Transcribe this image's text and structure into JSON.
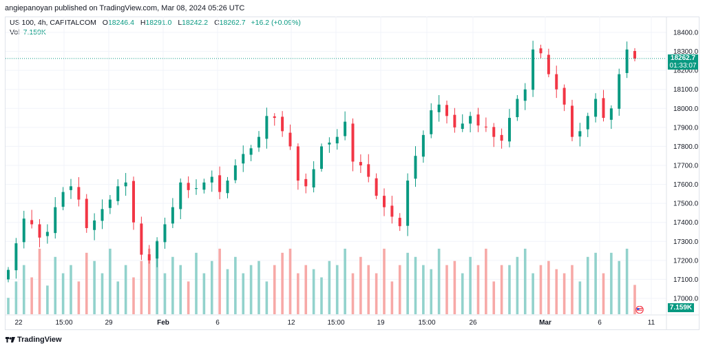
{
  "header": {
    "publish_line": "angiepanoyan published on TradingView.com, Mar 08, 2024 05:26 UTC"
  },
  "legend": {
    "symbol": "US 100, 4h, CAPITALCOM",
    "open_label": "O",
    "open": "18246.4",
    "high_label": "H",
    "high": "18291.0",
    "low_label": "L",
    "low": "18242.2",
    "close_label": "C",
    "close": "18262.7",
    "change": "+16.2 (+0.09%)",
    "vol_label": "Vol",
    "vol": "7.159K"
  },
  "price_label": {
    "price": "18262.7",
    "countdown": "01:33:07"
  },
  "volume_label": "7.159K",
  "brand": "TradingView",
  "colors": {
    "up": "#089981",
    "down": "#f23645",
    "vol_up": "#92d2cc",
    "vol_down": "#f7a9a7",
    "grid": "#f0f3fa"
  },
  "chart_data": {
    "type": "candlestick",
    "title": "US 100, 4h, CAPITALCOM",
    "ylim": [
      16900,
      18480
    ],
    "y_ticks": [
      "18400.0",
      "18300.0",
      "18200.0",
      "18100.0",
      "18000.0",
      "17900.0",
      "17800.0",
      "17700.0",
      "17600.0",
      "17500.0",
      "17400.0",
      "17300.0",
      "17200.0",
      "17100.0",
      "17000.0"
    ],
    "x_ticks": [
      {
        "label": "22",
        "bold": false
      },
      {
        "label": "15:00",
        "bold": false
      },
      {
        "label": "29",
        "bold": false
      },
      {
        "label": "Feb",
        "bold": true
      },
      {
        "label": "6",
        "bold": false
      },
      {
        "label": "12",
        "bold": false
      },
      {
        "label": "15:00",
        "bold": false
      },
      {
        "label": "19",
        "bold": false
      },
      {
        "label": "15:00",
        "bold": false
      },
      {
        "label": "26",
        "bold": false
      },
      {
        "label": "Mar",
        "bold": true
      },
      {
        "label": "6",
        "bold": false
      },
      {
        "label": "11",
        "bold": false
      }
    ],
    "last_price": 18262.7,
    "close_path": [
      17150,
      17290,
      17420,
      17390,
      17320,
      17350,
      17480,
      17560,
      17590,
      17520,
      17370,
      17410,
      17470,
      17520,
      17590,
      17610,
      17400,
      17230,
      17200,
      17300,
      17390,
      17480,
      17610,
      17570,
      17580,
      17610,
      17640,
      17560,
      17620,
      17700,
      17760,
      17790,
      17850,
      17960,
      17950,
      17880,
      17800,
      17620,
      17590,
      17680,
      17800,
      17820,
      17850,
      17930,
      17720,
      17700,
      17640,
      17540,
      17480,
      17430,
      17380,
      17620,
      17750,
      17860,
      17990,
      18020,
      17960,
      17900,
      17920,
      17960,
      17910,
      17900,
      17850,
      17830,
      17950,
      18050,
      18100,
      18310,
      18290,
      18180,
      18100,
      18020,
      17850,
      17880,
      17960,
      18050,
      17950,
      18000,
      18180,
      18310,
      18262.7
    ],
    "volume_k": [
      4,
      8,
      12,
      9,
      16,
      7,
      14,
      10,
      12,
      8,
      15,
      13,
      10,
      16,
      8,
      12,
      9,
      13,
      16,
      18,
      10,
      14,
      12,
      8,
      15,
      10,
      13,
      16,
      11,
      14,
      10,
      12,
      13,
      8,
      12,
      15,
      16,
      10,
      12,
      11,
      9,
      13,
      12,
      16,
      10,
      14,
      12,
      10,
      16,
      8,
      12,
      15,
      14,
      12,
      11,
      16,
      12,
      13,
      10,
      14,
      12,
      16,
      8,
      12,
      12,
      14,
      16,
      10,
      12,
      13,
      11,
      10,
      12,
      8,
      14,
      15,
      10,
      15,
      13,
      16,
      7.159
    ]
  }
}
